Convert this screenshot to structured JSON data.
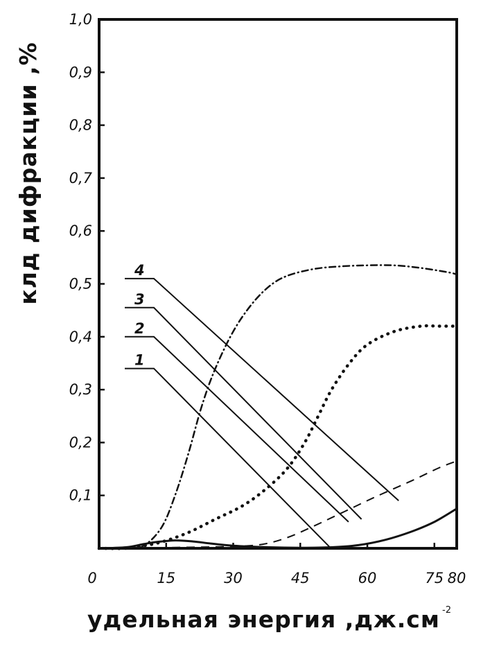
{
  "chart_data": {
    "type": "line",
    "xlabel": "удельная энергия ,дж.см",
    "xlabel_superscript": "-2",
    "ylabel": "клд дифракции ,%",
    "xlim": [
      0,
      80
    ],
    "ylim": [
      0,
      1.0
    ],
    "x_ticks": [
      {
        "value": 0,
        "label": "0"
      },
      {
        "value": 15,
        "label": "15"
      },
      {
        "value": 30,
        "label": "30"
      },
      {
        "value": 45,
        "label": "45"
      },
      {
        "value": 60,
        "label": "60"
      },
      {
        "value": 75,
        "label": "75"
      },
      {
        "value": 80,
        "label": "80"
      }
    ],
    "y_ticks": [
      {
        "value": 0.1,
        "label": "0,1"
      },
      {
        "value": 0.2,
        "label": "0,2"
      },
      {
        "value": 0.3,
        "label": "0,3"
      },
      {
        "value": 0.4,
        "label": "0,4"
      },
      {
        "value": 0.5,
        "label": "0,5"
      },
      {
        "value": 0.6,
        "label": "0,6"
      },
      {
        "value": 0.7,
        "label": "0,7"
      },
      {
        "value": 0.8,
        "label": "0,8"
      },
      {
        "value": 0.9,
        "label": "0,9"
      },
      {
        "value": 1.0,
        "label": "1,0"
      }
    ],
    "grid": false,
    "legend": "none",
    "series": [
      {
        "name": "1",
        "style": "solid",
        "x": [
          0,
          6,
          10,
          13,
          17,
          21,
          25,
          30,
          38,
          45,
          52,
          58,
          64,
          70,
          75,
          80
        ],
        "y": [
          0,
          0.002,
          0.008,
          0.012,
          0.015,
          0.013,
          0.009,
          0.005,
          0.002,
          0.001,
          0.002,
          0.006,
          0.016,
          0.032,
          0.05,
          0.075
        ]
      },
      {
        "name": "2",
        "style": "dashed",
        "x": [
          0,
          6,
          12,
          20,
          28,
          36,
          42,
          48,
          55,
          62,
          70,
          76,
          80
        ],
        "y": [
          0,
          0,
          0.001,
          0.002,
          0.003,
          0.007,
          0.02,
          0.042,
          0.07,
          0.098,
          0.128,
          0.152,
          0.165
        ]
      },
      {
        "name": "3",
        "style": "dotted",
        "x": [
          0,
          6,
          10,
          14,
          20,
          26,
          32,
          37,
          42,
          46,
          49,
          52,
          56,
          60,
          66,
          72,
          76,
          80
        ],
        "y": [
          0,
          0,
          0.005,
          0.012,
          0.03,
          0.055,
          0.08,
          0.11,
          0.15,
          0.2,
          0.25,
          0.3,
          0.35,
          0.385,
          0.41,
          0.42,
          0.42,
          0.42
        ]
      },
      {
        "name": "4",
        "style": "dash-dot",
        "x": [
          0,
          6,
          10,
          14,
          17,
          20,
          23,
          26,
          30,
          34,
          38,
          42,
          48,
          54,
          60,
          66,
          72,
          78,
          80
        ],
        "y": [
          0,
          0,
          0.005,
          0.04,
          0.1,
          0.18,
          0.27,
          0.34,
          0.41,
          0.46,
          0.495,
          0.515,
          0.528,
          0.533,
          0.535,
          0.535,
          0.53,
          0.522,
          0.518
        ]
      }
    ],
    "curve_labels": [
      {
        "text": "1",
        "series": "1",
        "anchor_y": 0.34,
        "tip_x": 51.5,
        "tip_y": 0.003
      },
      {
        "text": "2",
        "series": "2",
        "anchor_y": 0.4,
        "tip_x": 55.8,
        "tip_y": 0.05
      },
      {
        "text": "3",
        "series": "3",
        "anchor_y": 0.455,
        "tip_x": 58.7,
        "tip_y": 0.055
      },
      {
        "text": "4",
        "series": "4",
        "anchor_y": 0.51,
        "tip_x": 67.0,
        "tip_y": 0.09
      }
    ]
  }
}
